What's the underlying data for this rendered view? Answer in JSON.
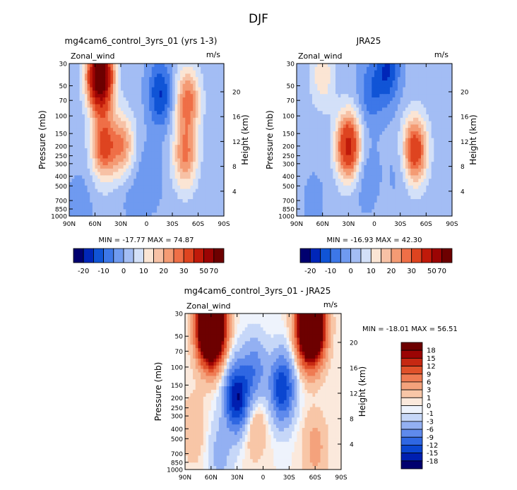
{
  "main_title": "DJF",
  "unit": "m/s",
  "variable_label": "Zonal_wind",
  "ylabel_left": "Pressure (mb)",
  "ylabel_right": "Height (km)",
  "min_label": "MIN =",
  "max_label": "MAX =",
  "colors": {
    "full": [
      "#00006f",
      "#0026b8",
      "#1054d6",
      "#3d77e8",
      "#6f9af0",
      "#a3bdf4",
      "#d3e0f8",
      "#fbe5d4",
      "#f7c1a5",
      "#f49b74",
      "#ef6f47",
      "#de4420",
      "#c01a0a",
      "#9b0404",
      "#6d0000"
    ],
    "diff": [
      "#00006f",
      "#001fb0",
      "#0b46d0",
      "#2f67e2",
      "#5f8aec",
      "#93b0f2",
      "#c6d7f8",
      "#eef3fc",
      "#fbe9dc",
      "#f8c6a7",
      "#f4a27c",
      "#ef7b53",
      "#e0512a",
      "#c62812",
      "#9b0404",
      "#6d0000"
    ]
  },
  "chart_data": [
    {
      "type": "heatmap",
      "title": "mg4cam6_control_3yrs_01 (yrs 1-3)",
      "x_ticks": [
        "90N",
        "60N",
        "30N",
        "0",
        "30S",
        "60S",
        "90S"
      ],
      "y_ticks": [
        "30",
        "50",
        "70",
        "100",
        "150",
        "200",
        "250",
        "300",
        "400",
        "500",
        "700",
        "850",
        "1000"
      ],
      "height_ticks": [
        "20",
        "16",
        "12",
        "8",
        "4"
      ],
      "min": "-17.77",
      "max": "74.87",
      "colorbar_ticks": [
        "-20",
        "-10",
        "0",
        "10",
        "20",
        "30",
        "50",
        "70"
      ],
      "features": [
        {
          "lat": 54,
          "p": 40,
          "value": 75
        },
        {
          "lat": 50,
          "p": 200,
          "value": 30
        },
        {
          "lat": 28,
          "p": 200,
          "value": 22
        },
        {
          "lat": -16,
          "p": 60,
          "value": -17
        },
        {
          "lat": -4,
          "p": 400,
          "value": -6
        },
        {
          "lat": 20,
          "p": 500,
          "value": -4
        },
        {
          "lat": -48,
          "p": 70,
          "value": 26
        },
        {
          "lat": -45,
          "p": 250,
          "value": 24
        },
        {
          "lat": 78,
          "p": 850,
          "value": -5
        }
      ]
    },
    {
      "type": "heatmap",
      "title": "JRA25",
      "x_ticks": [
        "90N",
        "60N",
        "30N",
        "0",
        "30S",
        "60S",
        "90S"
      ],
      "y_ticks": [
        "30",
        "50",
        "70",
        "100",
        "150",
        "200",
        "250",
        "300",
        "400",
        "500",
        "700",
        "850",
        "1000"
      ],
      "height_ticks": [
        "20",
        "16",
        "12",
        "8",
        "4"
      ],
      "min": "-16.93",
      "max": "42.30",
      "colorbar_ticks": [
        "-20",
        "-10",
        "0",
        "10",
        "20",
        "30",
        "50",
        "70"
      ],
      "features": [
        {
          "lat": 30,
          "p": 200,
          "value": 42
        },
        {
          "lat": 60,
          "p": 40,
          "value": 12
        },
        {
          "lat": -47,
          "p": 220,
          "value": 35
        },
        {
          "lat": -15,
          "p": 35,
          "value": -17
        },
        {
          "lat": 5,
          "p": 60,
          "value": -10
        },
        {
          "lat": 10,
          "p": 400,
          "value": -6
        },
        {
          "lat": -28,
          "p": 350,
          "value": -3
        },
        {
          "lat": 70,
          "p": 700,
          "value": -3
        }
      ]
    },
    {
      "type": "heatmap",
      "title": "mg4cam6_control_3yrs_01 - JRA25",
      "x_ticks": [
        "90N",
        "60N",
        "30N",
        "0",
        "30S",
        "60S",
        "90S"
      ],
      "y_ticks": [
        "30",
        "50",
        "70",
        "100",
        "150",
        "200",
        "250",
        "300",
        "400",
        "500",
        "700",
        "850",
        "1000"
      ],
      "height_ticks": [
        "20",
        "16",
        "12",
        "8",
        "4"
      ],
      "min": "-18.01",
      "max": "56.51",
      "colorbar_ticks": [
        "18",
        "15",
        "12",
        "9",
        "6",
        "3",
        "1",
        "0",
        "-1",
        "-3",
        "-6",
        "-9",
        "-12",
        "-15",
        "-18"
      ],
      "features": [
        {
          "lat": 60,
          "p": 40,
          "value": 56
        },
        {
          "lat": -55,
          "p": 40,
          "value": 50
        },
        {
          "lat": 30,
          "p": 200,
          "value": -18
        },
        {
          "lat": -22,
          "p": 160,
          "value": -15
        },
        {
          "lat": 10,
          "p": 110,
          "value": -8
        },
        {
          "lat": 10,
          "p": 350,
          "value": 4
        },
        {
          "lat": -60,
          "p": 600,
          "value": 4
        },
        {
          "lat": 80,
          "p": 400,
          "value": 3
        },
        {
          "lat": 50,
          "p": 700,
          "value": -4
        }
      ]
    }
  ]
}
